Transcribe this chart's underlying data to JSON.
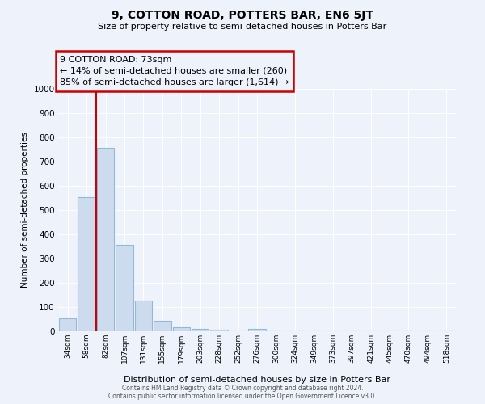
{
  "title": "9, COTTON ROAD, POTTERS BAR, EN6 5JT",
  "subtitle": "Size of property relative to semi-detached houses in Potters Bar",
  "xlabel": "Distribution of semi-detached houses by size in Potters Bar",
  "ylabel": "Number of semi-detached properties",
  "bar_labels": [
    "34sqm",
    "58sqm",
    "82sqm",
    "107sqm",
    "131sqm",
    "155sqm",
    "179sqm",
    "203sqm",
    "228sqm",
    "252sqm",
    "276sqm",
    "300sqm",
    "324sqm",
    "349sqm",
    "373sqm",
    "397sqm",
    "421sqm",
    "445sqm",
    "470sqm",
    "494sqm",
    "518sqm"
  ],
  "bar_values": [
    52,
    555,
    757,
    357,
    128,
    42,
    18,
    11,
    8,
    0,
    10,
    0,
    0,
    0,
    0,
    0,
    0,
    0,
    0,
    0,
    0
  ],
  "bar_color": "#ccdcee",
  "bar_edge_color": "#93b8d8",
  "vline_x": 1.5,
  "vline_color": "#cc0000",
  "annotation_title": "9 COTTON ROAD: 73sqm",
  "annotation_line2": "← 14% of semi-detached houses are smaller (260)",
  "annotation_line3": "85% of semi-detached houses are larger (1,614) →",
  "annotation_box_edge_color": "#cc0000",
  "ylim": [
    0,
    1000
  ],
  "yticks": [
    0,
    100,
    200,
    300,
    400,
    500,
    600,
    700,
    800,
    900,
    1000
  ],
  "bg_color": "#eef2fb",
  "grid_color": "#ffffff",
  "footer_line1": "Contains HM Land Registry data © Crown copyright and database right 2024.",
  "footer_line2": "Contains public sector information licensed under the Open Government Licence v3.0."
}
